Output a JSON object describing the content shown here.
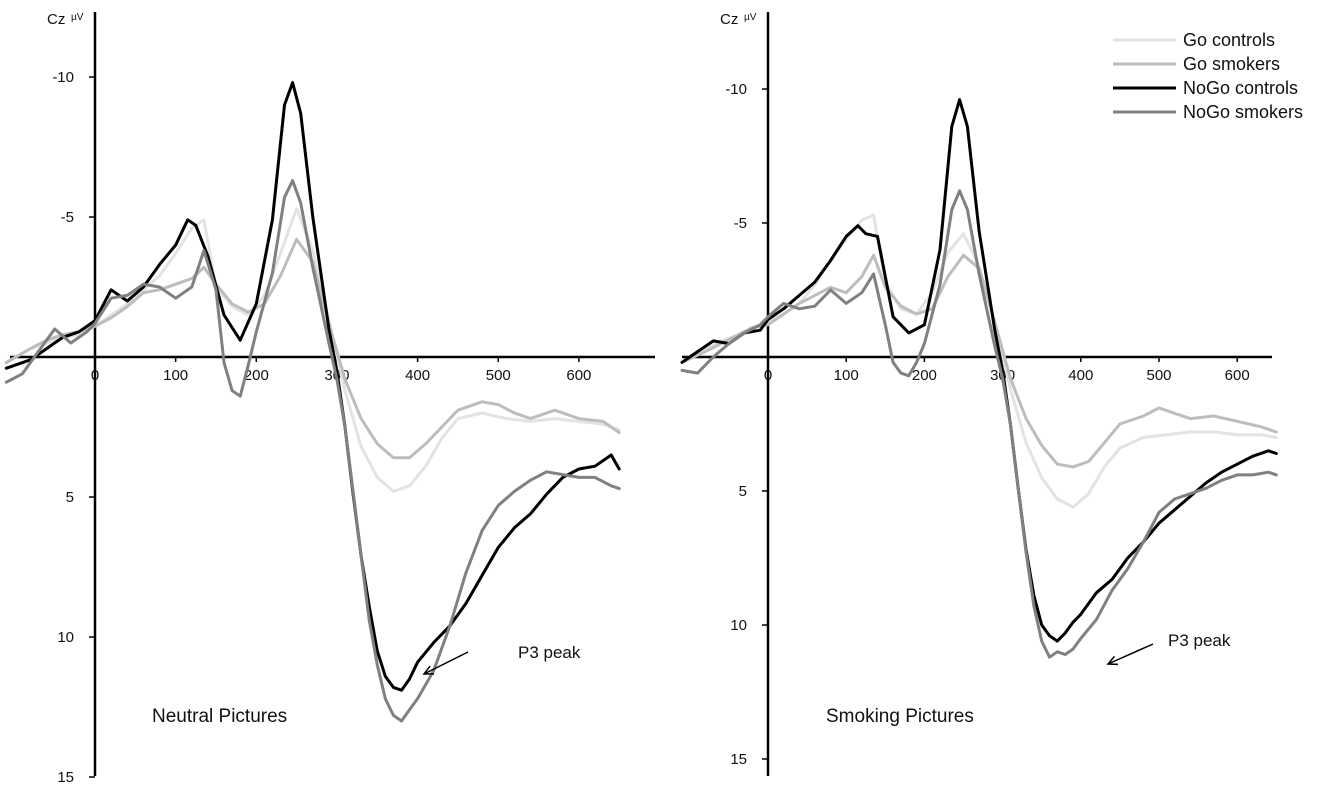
{
  "legend": {
    "position": "top-right",
    "entries": [
      {
        "label": "Go controls",
        "color": "#e3e3e3"
      },
      {
        "label": "Go smokers",
        "color": "#bdbdbd"
      },
      {
        "label": "NoGo controls",
        "color": "#000000"
      },
      {
        "label": "NoGo smokers",
        "color": "#808080"
      }
    ]
  },
  "chart_data": [
    {
      "type": "line",
      "title": "Neutral Pictures",
      "ylabel": "Cz",
      "yunit": "µV",
      "xlabel": "",
      "y_inverted": true,
      "xlim": [
        -110,
        650
      ],
      "ylim": [
        -12,
        15
      ],
      "xticks": [
        0,
        100,
        200,
        300,
        400,
        500,
        600
      ],
      "yticks": [
        -10,
        -5,
        5,
        10,
        15
      ],
      "annotation": {
        "text": "P3 peak",
        "x": 380,
        "y": 11.5
      },
      "series": [
        {
          "name": "Go controls",
          "color": "#e3e3e3",
          "x": [
            -110,
            -80,
            -60,
            -40,
            -20,
            0,
            20,
            40,
            60,
            80,
            100,
            120,
            135,
            150,
            170,
            190,
            210,
            230,
            250,
            270,
            290,
            310,
            330,
            350,
            370,
            390,
            410,
            430,
            450,
            480,
            510,
            540,
            570,
            600,
            630,
            650
          ],
          "y": [
            0.2,
            -0.3,
            -0.5,
            -0.7,
            -0.8,
            -1.1,
            -1.5,
            -1.9,
            -2.4,
            -2.9,
            -3.7,
            -4.6,
            -4.9,
            -2.5,
            -1.8,
            -1.5,
            -2.2,
            -3.7,
            -5.3,
            -3.8,
            -1.3,
            1.2,
            3.2,
            4.3,
            4.8,
            4.6,
            3.9,
            2.9,
            2.2,
            2.0,
            2.2,
            2.3,
            2.2,
            2.3,
            2.4,
            2.6
          ]
        },
        {
          "name": "Go smokers",
          "color": "#bdbdbd",
          "x": [
            -110,
            -80,
            -60,
            -40,
            -20,
            0,
            20,
            40,
            60,
            80,
            100,
            120,
            135,
            150,
            170,
            190,
            210,
            230,
            250,
            270,
            290,
            310,
            330,
            350,
            370,
            390,
            410,
            430,
            450,
            480,
            500,
            520,
            540,
            570,
            600,
            630,
            650
          ],
          "y": [
            0.2,
            -0.3,
            -0.6,
            -0.8,
            -0.9,
            -1.1,
            -1.4,
            -1.8,
            -2.3,
            -2.4,
            -2.6,
            -2.8,
            -3.2,
            -2.6,
            -1.9,
            -1.6,
            -1.9,
            -2.9,
            -4.2,
            -3.4,
            -1.2,
            0.8,
            2.2,
            3.1,
            3.6,
            3.6,
            3.1,
            2.5,
            1.9,
            1.6,
            1.7,
            2.0,
            2.2,
            1.9,
            2.2,
            2.3,
            2.7
          ]
        },
        {
          "name": "NoGo controls",
          "color": "#000000",
          "x": [
            -110,
            -80,
            -60,
            -40,
            -20,
            0,
            20,
            40,
            60,
            80,
            100,
            115,
            125,
            140,
            160,
            180,
            200,
            220,
            235,
            245,
            255,
            270,
            290,
            300,
            310,
            320,
            330,
            340,
            350,
            360,
            370,
            380,
            390,
            400,
            420,
            440,
            460,
            480,
            500,
            520,
            540,
            560,
            580,
            600,
            620,
            640,
            650
          ],
          "y": [
            0.4,
            0.1,
            -0.3,
            -0.7,
            -0.9,
            -1.3,
            -2.4,
            -2.0,
            -2.5,
            -3.3,
            -4.0,
            -4.9,
            -4.7,
            -3.6,
            -1.5,
            -0.6,
            -1.9,
            -4.9,
            -9.0,
            -9.8,
            -8.7,
            -5.0,
            -1.0,
            0.5,
            2.5,
            4.9,
            7.1,
            8.9,
            10.5,
            11.4,
            11.8,
            11.9,
            11.5,
            10.9,
            10.2,
            9.6,
            8.8,
            7.8,
            6.8,
            6.1,
            5.6,
            4.9,
            4.3,
            4.0,
            3.9,
            3.5,
            4.0
          ]
        },
        {
          "name": "NoGo smokers",
          "color": "#808080",
          "x": [
            -110,
            -90,
            -70,
            -50,
            -30,
            -10,
            0,
            20,
            40,
            60,
            80,
            100,
            120,
            135,
            150,
            160,
            170,
            180,
            190,
            200,
            220,
            235,
            245,
            255,
            270,
            290,
            300,
            310,
            320,
            330,
            340,
            350,
            360,
            370,
            380,
            390,
            400,
            420,
            440,
            460,
            480,
            500,
            520,
            540,
            560,
            580,
            600,
            620,
            640,
            650
          ],
          "y": [
            0.9,
            0.6,
            -0.2,
            -1.0,
            -0.5,
            -0.9,
            -1.2,
            -2.1,
            -2.2,
            -2.6,
            -2.5,
            -2.1,
            -2.5,
            -3.8,
            -2.4,
            0.2,
            1.2,
            1.4,
            0.3,
            -0.9,
            -3.0,
            -5.7,
            -6.3,
            -5.5,
            -3.2,
            -0.5,
            0.8,
            2.5,
            4.8,
            7.1,
            9.4,
            11.0,
            12.2,
            12.8,
            13.0,
            12.6,
            12.2,
            11.2,
            9.6,
            7.7,
            6.2,
            5.3,
            4.8,
            4.4,
            4.1,
            4.2,
            4.3,
            4.3,
            4.6,
            4.7
          ]
        }
      ]
    },
    {
      "type": "line",
      "title": "Smoking Pictures",
      "ylabel": "Cz",
      "yunit": "µV",
      "xlabel": "",
      "y_inverted": true,
      "xlim": [
        -110,
        650
      ],
      "ylim": [
        -12,
        15
      ],
      "xticks": [
        0,
        100,
        200,
        300,
        400,
        500,
        600
      ],
      "yticks": [
        -10,
        -5,
        5,
        10,
        15
      ],
      "annotation": {
        "text": "P3 peak",
        "x": 380,
        "y": 11.0
      },
      "series": [
        {
          "name": "Go controls",
          "color": "#e3e3e3",
          "x": [
            -110,
            -80,
            -60,
            -40,
            -20,
            0,
            20,
            40,
            60,
            80,
            100,
            120,
            135,
            150,
            170,
            190,
            210,
            230,
            250,
            270,
            290,
            310,
            330,
            350,
            370,
            390,
            410,
            430,
            450,
            480,
            510,
            540,
            570,
            600,
            630,
            650
          ],
          "y": [
            0.2,
            -0.3,
            -0.6,
            -0.8,
            -1.1,
            -1.3,
            -1.6,
            -2.0,
            -2.7,
            -3.6,
            -4.4,
            -5.1,
            -5.3,
            -2.8,
            -1.8,
            -1.6,
            -2.4,
            -3.9,
            -4.6,
            -3.4,
            -1.3,
            1.2,
            3.2,
            4.5,
            5.3,
            5.6,
            5.1,
            4.1,
            3.4,
            3.0,
            2.9,
            2.8,
            2.8,
            2.9,
            2.9,
            3.0
          ]
        },
        {
          "name": "Go smokers",
          "color": "#bdbdbd",
          "x": [
            -110,
            -80,
            -60,
            -40,
            -20,
            0,
            20,
            40,
            60,
            80,
            100,
            120,
            135,
            150,
            170,
            190,
            210,
            230,
            250,
            270,
            290,
            310,
            330,
            350,
            370,
            390,
            410,
            430,
            450,
            480,
            500,
            520,
            540,
            570,
            600,
            630,
            650
          ],
          "y": [
            0.2,
            -0.2,
            -0.5,
            -0.8,
            -1.1,
            -1.2,
            -1.6,
            -2.0,
            -2.3,
            -2.6,
            -2.4,
            -3.0,
            -3.8,
            -2.6,
            -1.9,
            -1.6,
            -1.8,
            -3.0,
            -3.8,
            -3.3,
            -1.3,
            0.8,
            2.3,
            3.3,
            4.0,
            4.1,
            3.9,
            3.2,
            2.5,
            2.2,
            1.9,
            2.1,
            2.3,
            2.2,
            2.4,
            2.6,
            2.8
          ]
        },
        {
          "name": "NoGo controls",
          "color": "#000000",
          "x": [
            -110,
            -90,
            -70,
            -50,
            -30,
            -10,
            0,
            20,
            40,
            60,
            80,
            100,
            115,
            125,
            140,
            160,
            180,
            200,
            220,
            235,
            245,
            255,
            270,
            290,
            300,
            310,
            320,
            330,
            340,
            350,
            360,
            370,
            380,
            390,
            400,
            420,
            440,
            460,
            480,
            500,
            520,
            540,
            560,
            580,
            600,
            620,
            640,
            650
          ],
          "y": [
            0.2,
            -0.2,
            -0.6,
            -0.5,
            -0.9,
            -1.0,
            -1.4,
            -1.8,
            -2.3,
            -2.8,
            -3.6,
            -4.5,
            -4.9,
            -4.6,
            -4.5,
            -1.5,
            -0.9,
            -1.2,
            -4.0,
            -8.6,
            -9.6,
            -8.6,
            -4.7,
            -1.0,
            0.5,
            2.5,
            4.9,
            7.2,
            8.9,
            10.0,
            10.4,
            10.6,
            10.3,
            9.9,
            9.6,
            8.8,
            8.3,
            7.5,
            6.9,
            6.2,
            5.7,
            5.2,
            4.7,
            4.3,
            4.0,
            3.7,
            3.5,
            3.6
          ]
        },
        {
          "name": "NoGo smokers",
          "color": "#808080",
          "x": [
            -110,
            -90,
            -70,
            -50,
            -30,
            -10,
            0,
            20,
            40,
            60,
            80,
            100,
            120,
            135,
            150,
            160,
            170,
            180,
            190,
            200,
            220,
            235,
            245,
            255,
            270,
            290,
            300,
            310,
            320,
            330,
            340,
            350,
            360,
            370,
            380,
            390,
            400,
            420,
            440,
            460,
            480,
            500,
            520,
            540,
            560,
            580,
            600,
            620,
            640,
            650
          ],
          "y": [
            0.5,
            0.6,
            0.0,
            -0.5,
            -0.9,
            -1.2,
            -1.5,
            -2.0,
            -1.8,
            -1.9,
            -2.5,
            -2.0,
            -2.4,
            -3.1,
            -1.2,
            0.2,
            0.6,
            0.7,
            0.2,
            -0.5,
            -2.7,
            -5.5,
            -6.2,
            -5.5,
            -3.1,
            -0.4,
            0.8,
            2.5,
            4.9,
            7.3,
            9.3,
            10.6,
            11.2,
            11.0,
            11.1,
            10.9,
            10.5,
            9.8,
            8.7,
            7.9,
            6.9,
            5.8,
            5.3,
            5.1,
            4.9,
            4.6,
            4.4,
            4.4,
            4.3,
            4.4
          ]
        }
      ]
    }
  ]
}
